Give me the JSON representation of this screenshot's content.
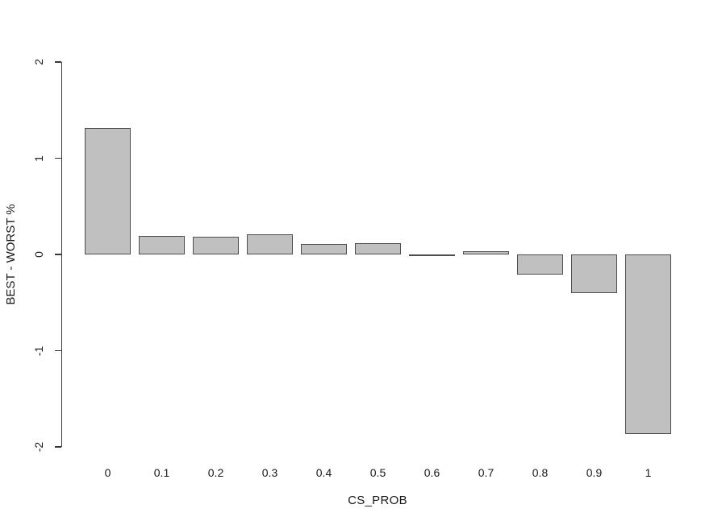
{
  "figure": {
    "background": "#ffffff"
  },
  "chart_data": {
    "type": "bar",
    "title": "",
    "xlabel": "CS_PROB",
    "ylabel": "BEST - WORST %",
    "categories": [
      "0",
      "0.1",
      "0.2",
      "0.3",
      "0.4",
      "0.5",
      "0.6",
      "0.7",
      "0.8",
      "0.9",
      "1"
    ],
    "values": [
      1.31,
      0.19,
      0.18,
      0.21,
      0.11,
      0.12,
      -0.01,
      0.03,
      -0.21,
      -0.4,
      -1.87
    ],
    "ylim": [
      -2,
      2
    ],
    "yticks": [
      2,
      1,
      0,
      -1,
      -2
    ],
    "grid": false,
    "legend": "none",
    "colors": {
      "bar_fill": "#c0c0c0",
      "bar_border": "#4e4e4e",
      "axis": "#383838",
      "text": "#1a1a1a",
      "background": "#ffffff"
    }
  }
}
